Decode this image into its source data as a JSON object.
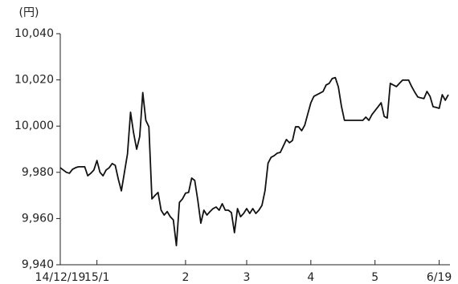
{
  "chart_data": {
    "type": "line",
    "y_label": "(円)",
    "categories": [
      "14/12/19",
      null,
      null,
      null,
      null,
      null,
      null,
      null,
      null,
      null,
      null,
      null,
      "15/1",
      null,
      null,
      null,
      null,
      null,
      null,
      null,
      null,
      null,
      null,
      null,
      null,
      null,
      null,
      null,
      null,
      null,
      null,
      null,
      null,
      null,
      null,
      null,
      null,
      null,
      null,
      null,
      null,
      "2",
      null,
      null,
      null,
      null,
      null,
      null,
      null,
      null,
      null,
      null,
      null,
      null,
      null,
      null,
      null,
      null,
      null,
      null,
      null,
      "3",
      null,
      null,
      null,
      null,
      null,
      null,
      null,
      null,
      null,
      null,
      null,
      null,
      null,
      null,
      null,
      null,
      null,
      null,
      null,
      null,
      "4",
      null,
      null,
      null,
      null,
      null,
      null,
      null,
      null,
      null,
      null,
      null,
      null,
      null,
      null,
      null,
      null,
      null,
      null,
      null,
      null,
      "5",
      null,
      null,
      null,
      null,
      null,
      null,
      null,
      null,
      null,
      null,
      null,
      null,
      null,
      null,
      null,
      null,
      null,
      null,
      null,
      null,
      "6/19",
      null,
      null,
      null
    ],
    "values": [
      9982.0,
      9981.0,
      9980.0,
      9979.6,
      9981.3,
      9982.0,
      9982.4,
      9982.4,
      9982.4,
      9978.5,
      9979.6,
      9981.0,
      9985.1,
      9980.0,
      9978.5,
      9981.0,
      9982.0,
      9983.8,
      9983.0,
      9977.0,
      9972.0,
      9980.0,
      9988.0,
      10006.0,
      9997.0,
      9990.0,
      9995.5,
      10014.5,
      10002.5,
      9999.7,
      9968.5,
      9970.0,
      9971.3,
      9963.6,
      9961.5,
      9963.0,
      9960.8,
      9959.4,
      9948.3,
      9967.0,
      9968.5,
      9971.0,
      9971.3,
      9977.5,
      9976.5,
      9968.0,
      9958.0,
      9963.6,
      9961.5,
      9963.0,
      9964.3,
      9965.0,
      9963.6,
      9966.4,
      9963.6,
      9963.6,
      9962.6,
      9953.9,
      9964.3,
      9960.8,
      9962.2,
      9964.3,
      9962.2,
      9964.3,
      9962.2,
      9963.6,
      9965.7,
      9972.0,
      9984.0,
      9986.5,
      9987.2,
      9988.3,
      9988.6,
      9991.4,
      9994.2,
      9992.8,
      9993.8,
      9999.7,
      9999.7,
      9998.0,
      10000.4,
      10005.3,
      10010.1,
      10012.9,
      10013.6,
      10014.3,
      10015.0,
      10017.8,
      10018.5,
      10020.6,
      10021.0,
      10017.0,
      10008.7,
      10002.5,
      10002.5,
      10002.5,
      10002.5,
      10002.5,
      10002.5,
      10002.5,
      10003.9,
      10002.5,
      10005.0,
      10006.7,
      10008.4,
      10010.1,
      10004.2,
      10003.5,
      10018.5,
      10017.8,
      10017.1,
      10018.5,
      10019.9,
      10019.9,
      10019.9,
      10017.1,
      10014.7,
      10012.6,
      10012.2,
      10011.9,
      10015.0,
      10012.9,
      10008.4,
      10008.1,
      10007.7,
      10013.6,
      10011.2,
      10013.6
    ],
    "color": "#111111",
    "ylim": [
      9940,
      10040
    ],
    "yticks": [
      {
        "value": 9940,
        "label": "9,940"
      },
      {
        "value": 9960,
        "label": "9,960"
      },
      {
        "value": 9980,
        "label": "9,980"
      },
      {
        "value": 10000,
        "label": "10,000"
      },
      {
        "value": 10020,
        "label": "10,020"
      },
      {
        "value": 10040,
        "label": "10,040"
      }
    ]
  }
}
